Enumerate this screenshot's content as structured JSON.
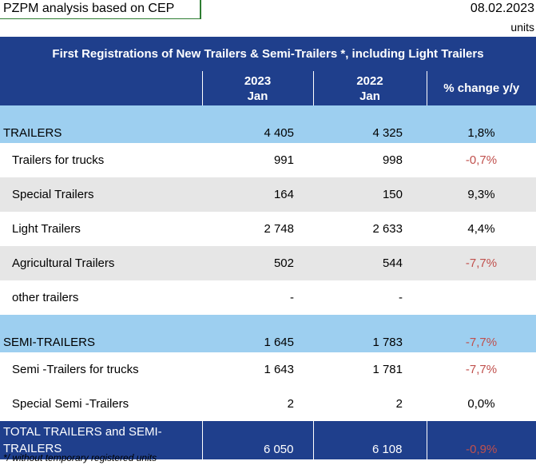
{
  "header": {
    "source": "PZPM analysis based on CEP",
    "date": "08.02.2023",
    "units": "units"
  },
  "title": "First Registrations of New Trailers & Semi-Trailers *, including Light Trailers",
  "columns": {
    "col2_year": "2023",
    "col2_month": "Jan",
    "col3_year": "2022",
    "col3_month": "Jan",
    "col4": "% change y/y"
  },
  "rows": [
    {
      "label": "TRAILERS",
      "v2023": "4 405",
      "v2022": "4 325",
      "change": "1,8%"
    },
    {
      "label": "Trailers for trucks",
      "v2023": "991",
      "v2022": "998",
      "change": "-0,7%"
    },
    {
      "label": "Special Trailers",
      "v2023": "164",
      "v2022": "150",
      "change": "9,3%"
    },
    {
      "label": "Light Trailers",
      "v2023": "2 748",
      "v2022": "2 633",
      "change": "4,4%"
    },
    {
      "label": "Agricultural Trailers",
      "v2023": "502",
      "v2022": "544",
      "change": "-7,7%"
    },
    {
      "label": "other trailers",
      "v2023": "-",
      "v2022": "-",
      "change": ""
    },
    {
      "label": "SEMI-TRAILERS",
      "v2023": "1 645",
      "v2022": "1 783",
      "change": "-7,7%"
    },
    {
      "label": "Semi -Trailers for trucks",
      "v2023": "1 643",
      "v2022": "1 781",
      "change": "-7,7%"
    },
    {
      "label": "Special Semi -Trailers",
      "v2023": "2",
      "v2022": "2",
      "change": "0,0%"
    }
  ],
  "total": {
    "label_line1": "TOTAL TRAILERS and SEMI-",
    "label_line2": "TRAILERS",
    "v2023": "6 050",
    "v2022": "6 108",
    "change": "-0,9%"
  },
  "footnote": "*/ without temporary registered units",
  "colors": {
    "header_blue": "#1f3f8c",
    "group_blue": "#9dcff0",
    "shade_grey": "#e6e6e6",
    "negative_red": "#c0504d"
  }
}
